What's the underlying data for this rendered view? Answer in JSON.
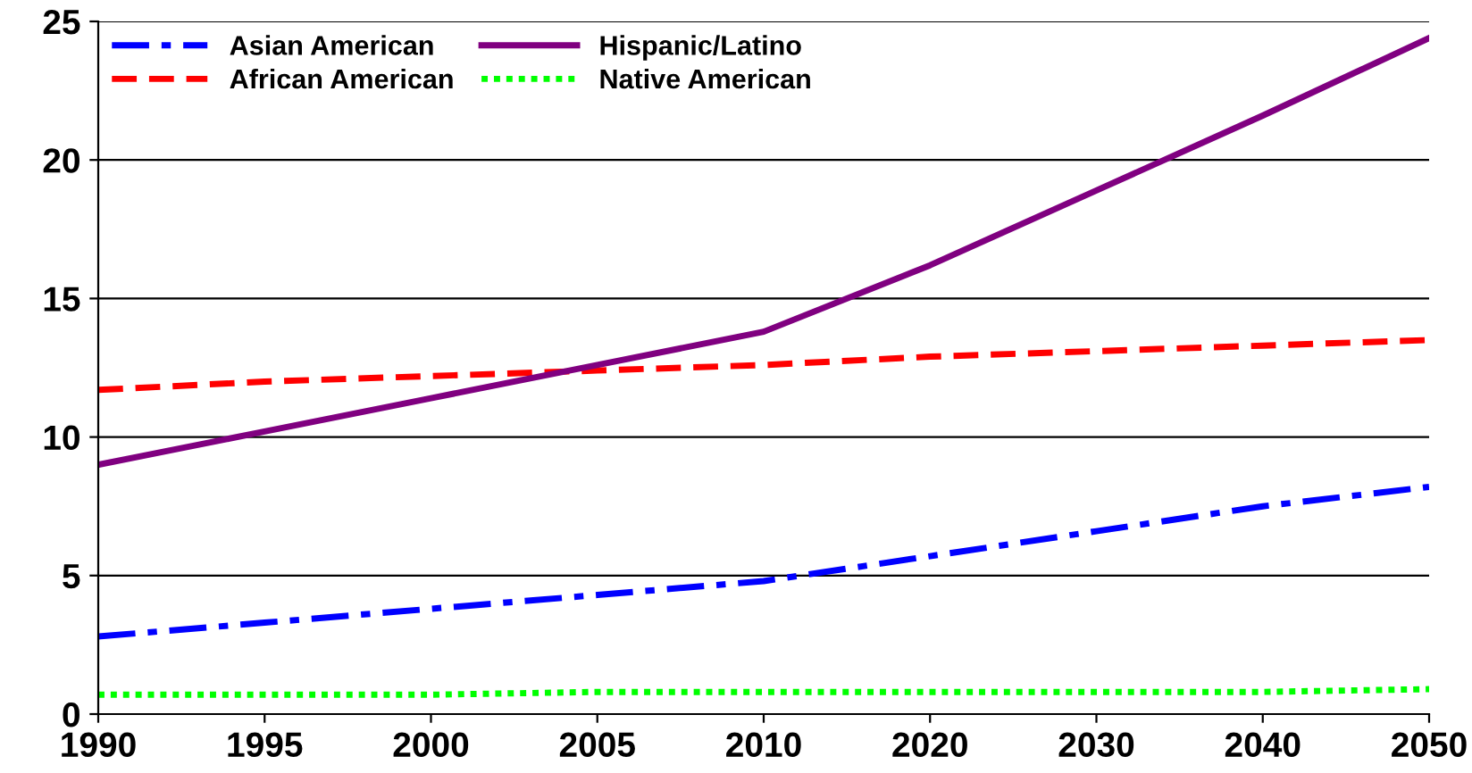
{
  "chart_data": {
    "type": "line",
    "categories": [
      "1990",
      "1995",
      "2000",
      "2005",
      "2010",
      "2020",
      "2030",
      "2040",
      "2050"
    ],
    "series": [
      {
        "name": "Asian American",
        "color": "#0000ff",
        "line_style": "dashdot",
        "values": [
          2.8,
          3.3,
          3.8,
          4.3,
          4.8,
          5.7,
          6.6,
          7.5,
          8.2
        ]
      },
      {
        "name": "African American",
        "color": "#ff0000",
        "line_style": "dashed",
        "values": [
          11.7,
          12.0,
          12.2,
          12.4,
          12.6,
          12.9,
          13.1,
          13.3,
          13.5
        ]
      },
      {
        "name": "Hispanic/Latino",
        "color": "#800080",
        "line_style": "solid",
        "values": [
          9.0,
          10.2,
          11.4,
          12.6,
          13.8,
          16.2,
          18.9,
          21.6,
          24.4
        ]
      },
      {
        "name": "Native American",
        "color": "#00ff00",
        "line_style": "dotted",
        "values": [
          0.7,
          0.7,
          0.7,
          0.8,
          0.8,
          0.8,
          0.8,
          0.8,
          0.9
        ]
      }
    ],
    "ylim": [
      0,
      25
    ],
    "yticks": [
      0,
      5,
      10,
      15,
      20,
      25
    ],
    "grid": "y",
    "legend": "top left",
    "marker": "none"
  }
}
